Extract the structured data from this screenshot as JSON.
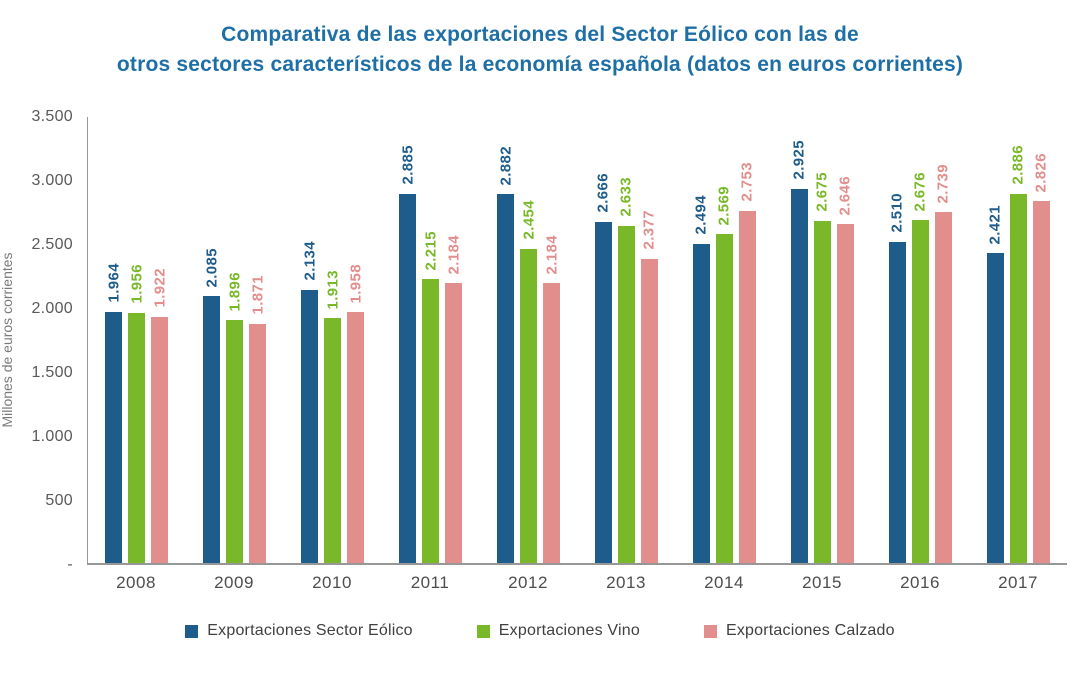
{
  "title": {
    "line1": "Comparativa de las exportaciones del Sector Eólico con las de",
    "line2": "otros sectores característicos de la economía española (datos en euros corrientes)",
    "color": "#1E6FA6"
  },
  "chart_data": {
    "type": "bar",
    "title": "Comparativa de las exportaciones del Sector Eólico con las de otros sectores característicos de la economía española (datos en euros corrientes)",
    "categories": [
      "2008",
      "2009",
      "2010",
      "2011",
      "2012",
      "2013",
      "2014",
      "2015",
      "2016",
      "2017"
    ],
    "series": [
      {
        "name": "Exportaciones Sector Eólico",
        "color": "#1E5C8C",
        "values": [
          1964,
          2085,
          2134,
          2885,
          2882,
          2666,
          2494,
          2925,
          2510,
          2421
        ],
        "labels": [
          "1.964",
          "2.085",
          "2.134",
          "2.885",
          "2.882",
          "2.666",
          "2.494",
          "2.925",
          "2.510",
          "2.421"
        ]
      },
      {
        "name": "Exportaciones Vino",
        "color": "#79B829",
        "values": [
          1956,
          1896,
          1913,
          2215,
          2454,
          2633,
          2569,
          2675,
          2676,
          2886
        ],
        "labels": [
          "1.956",
          "1.896",
          "1.913",
          "2.215",
          "2.454",
          "2.633",
          "2.569",
          "2.675",
          "2.676",
          "2.886"
        ]
      },
      {
        "name": "Exportaciones Calzado",
        "color": "#E28E8C",
        "values": [
          1922,
          1871,
          1958,
          2184,
          2184,
          2377,
          2753,
          2646,
          2739,
          2826
        ],
        "labels": [
          "1.922",
          "1.871",
          "1.958",
          "2.184",
          "2.184",
          "2.377",
          "2.753",
          "2.646",
          "2.739",
          "2.826"
        ]
      }
    ],
    "xlabel": "",
    "ylabel": "Millones de euros corrientes",
    "ylim": [
      0,
      3500
    ],
    "yticks": [
      "3.500",
      "3.000",
      "2.500",
      "2.000",
      "1.500",
      "1.000",
      "500",
      "-"
    ],
    "grid": false,
    "legend_position": "bottom"
  }
}
